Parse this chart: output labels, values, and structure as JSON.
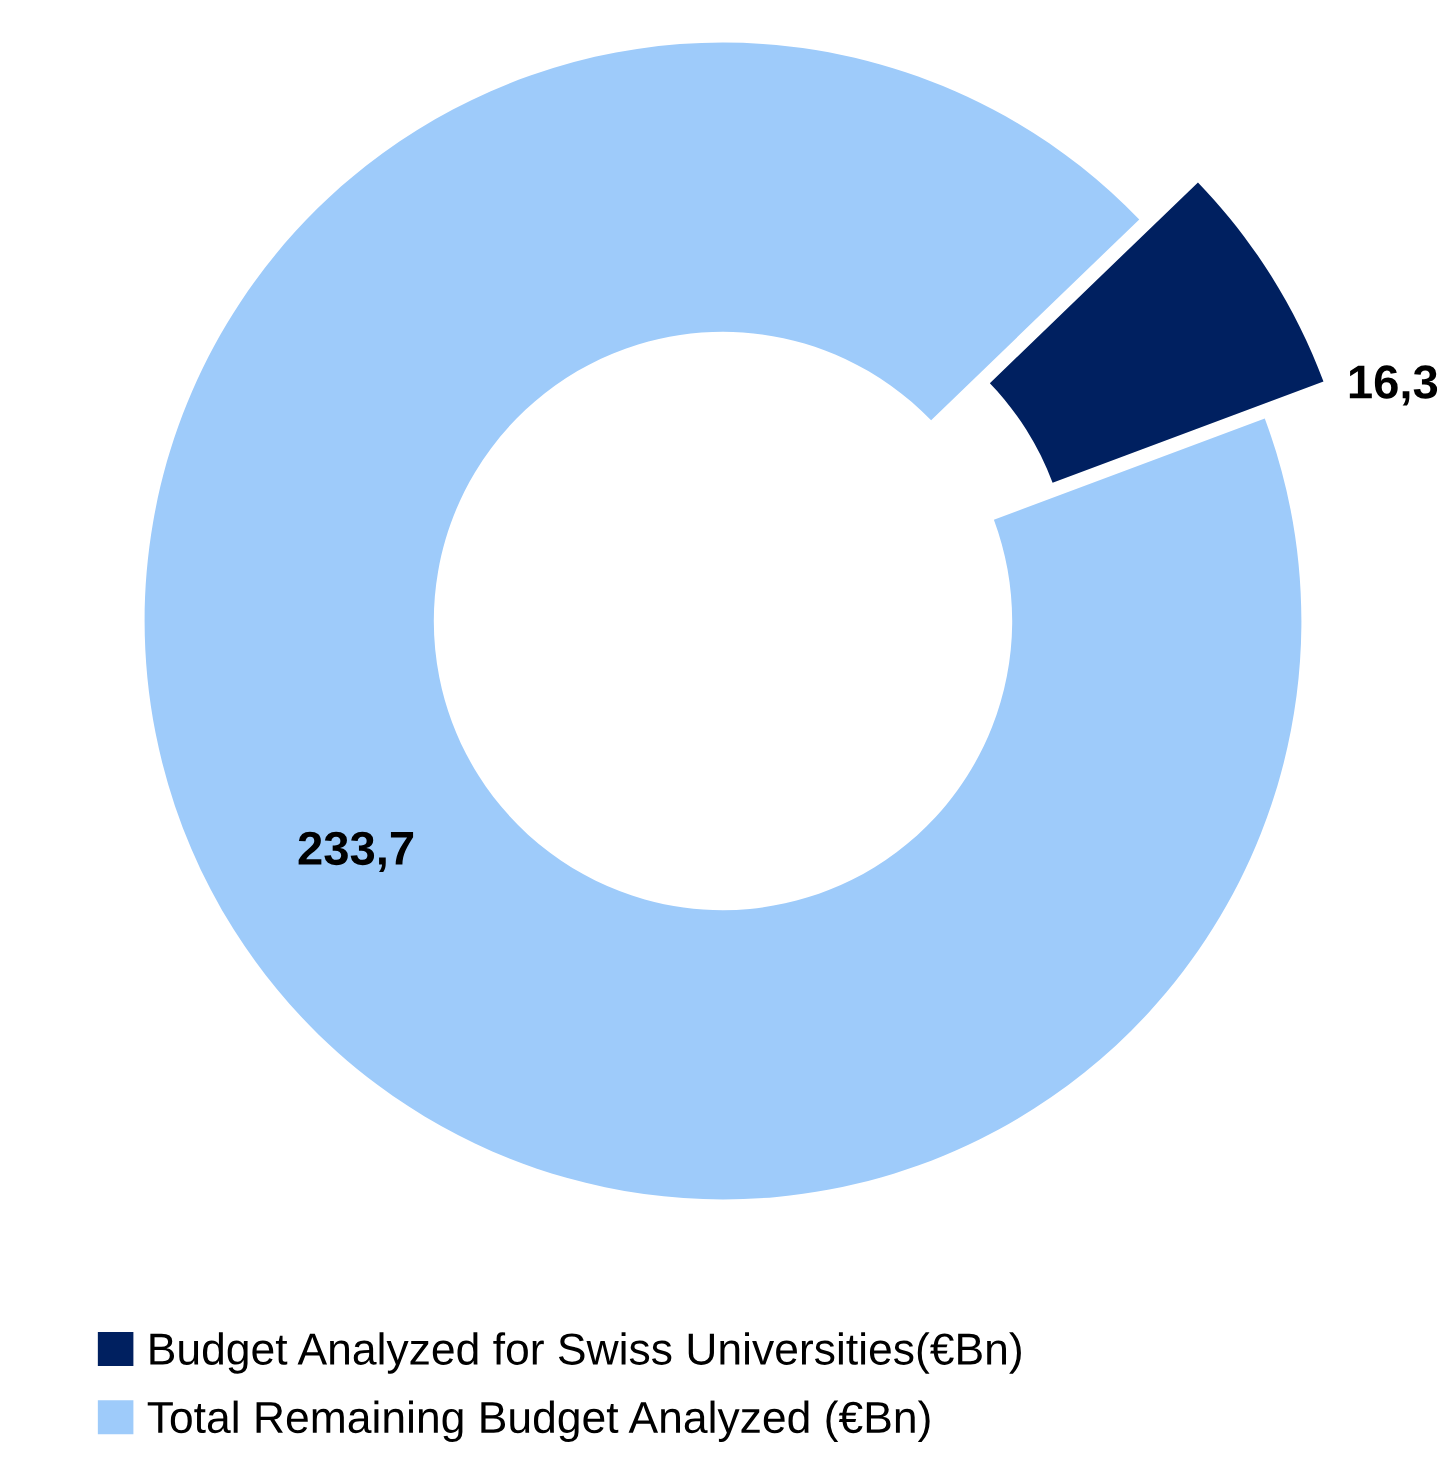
{
  "chart_data": {
    "type": "donut",
    "categories": [
      "Budget Analyzed for Swiss Universities(€Bn)",
      "Total Remaining Budget Analyzed (€Bn)"
    ],
    "values": [
      16.3,
      233.7
    ],
    "value_labels": [
      "16,3",
      "233,7"
    ],
    "colors": [
      "#002060",
      "#9ecbfa"
    ],
    "legend": "bottom"
  }
}
